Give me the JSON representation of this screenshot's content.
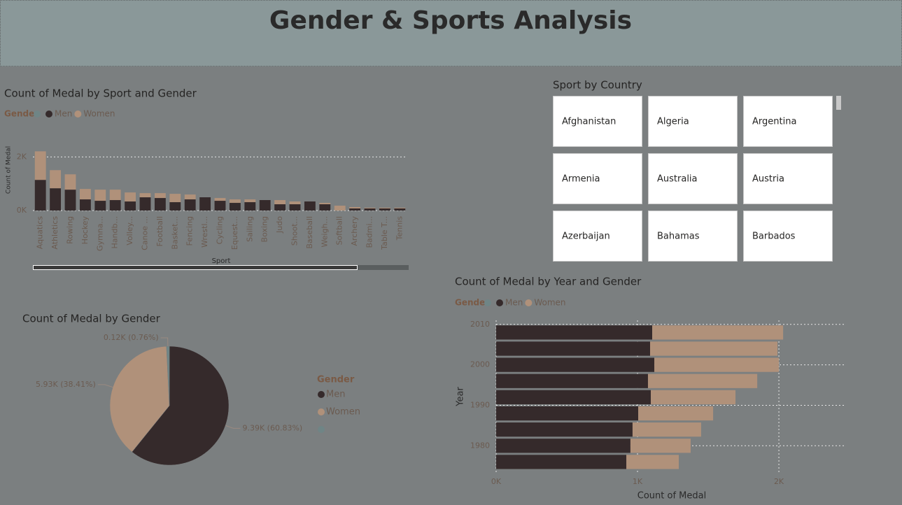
{
  "header": {
    "title": "Gender & Sports Analysis"
  },
  "slicer": {
    "title": "Sport by Country",
    "items": [
      "Afghanistan",
      "Algeria",
      "Argentina",
      "Armenia",
      "Australia",
      "Austria",
      "Azerbaijan",
      "Bahamas",
      "Barbados"
    ]
  },
  "chart_data": [
    {
      "type": "bar",
      "stacked": true,
      "title": "Count of Medal by Sport and Gender",
      "legend_title": "Gender",
      "x_label": "Sport",
      "y_label": "Count of Medal",
      "categories": [
        "Aquatics",
        "Athletics",
        "Rowing",
        "Hockey",
        "Gymna...",
        "Handb...",
        "Volley...",
        "Canoe ...",
        "Football",
        "Basket...",
        "Fencing",
        "Wrestl...",
        "Cycling",
        "Equest...",
        "Sailing",
        "Boxing",
        "Judo",
        "Shoot...",
        "Baseball",
        "Weigh...",
        "Softball",
        "Archery",
        "Badmi...",
        "Table T...",
        "Tennis"
      ],
      "series": [
        {
          "name": null,
          "color": "#6f8586",
          "values": [
            0,
            0,
            0,
            0,
            0,
            0,
            0,
            0,
            0,
            0,
            0,
            0,
            0,
            0,
            0,
            0,
            0,
            0,
            0,
            0,
            0,
            0,
            0,
            0,
            0
          ]
        },
        {
          "name": "Men",
          "color": "#352a2b",
          "values": [
            1143,
            831,
            779,
            416,
            364,
            390,
            338,
            494,
            468,
            312,
            416,
            494,
            364,
            286,
            312,
            390,
            234,
            234,
            338,
            234,
            0,
            78,
            78,
            78,
            78
          ]
        },
        {
          "name": "Women",
          "color": "#b0917a",
          "values": [
            1065,
            675,
            572,
            389,
            415,
            389,
            337,
            155,
            181,
            311,
            181,
            0,
            104,
            130,
            104,
            0,
            156,
            104,
            0,
            52,
            182,
            52,
            26,
            26,
            26
          ]
        }
      ],
      "ylim": [
        0,
        2400
      ],
      "yticks": [
        {
          "value": 0,
          "label": "0K"
        },
        {
          "value": 2000,
          "label": "2K"
        }
      ],
      "grid": true
    },
    {
      "type": "pie",
      "title": "Count of Medal by Gender",
      "legend_title": "Gender",
      "categories": [
        "Men",
        "Women",
        null
      ],
      "values": [
        9390,
        5930,
        120
      ],
      "value_labels": [
        "9.39K (60.83%)",
        "5.93K (38.41%)",
        "0.12K (0.76%)"
      ],
      "colors": [
        "#352a2b",
        "#b0917a",
        "#6f8586"
      ]
    },
    {
      "type": "bar",
      "orientation": "horizontal",
      "stacked": true,
      "title": "Count of Medal by Year and Gender",
      "legend_title": "Gender",
      "x_label": "Count of Medal",
      "y_label": "Year",
      "y": [
        2008,
        2004,
        2000,
        1996,
        1992,
        1988,
        1984,
        1980,
        1976
      ],
      "series": [
        {
          "name": null,
          "color": "#6f8586",
          "values": [
            0,
            0,
            0,
            0,
            0,
            0,
            0,
            0,
            0
          ]
        },
        {
          "name": "Men",
          "color": "#352a2b",
          "values": [
            1104,
            1089,
            1119,
            1074,
            1094,
            1005,
            965,
            950,
            921
          ]
        },
        {
          "name": "Women",
          "color": "#b0917a",
          "values": [
            926,
            901,
            881,
            773,
            599,
            530,
            485,
            426,
            371
          ]
        }
      ],
      "xlim": [
        0,
        2470
      ],
      "xticks": [
        {
          "value": 0,
          "label": "0K"
        },
        {
          "value": 1000,
          "label": "1K"
        },
        {
          "value": 2000,
          "label": "2K"
        }
      ],
      "ylim": [
        1974,
        2011
      ],
      "yticks": [
        1980,
        1990,
        2000,
        2010
      ],
      "grid": true
    }
  ]
}
